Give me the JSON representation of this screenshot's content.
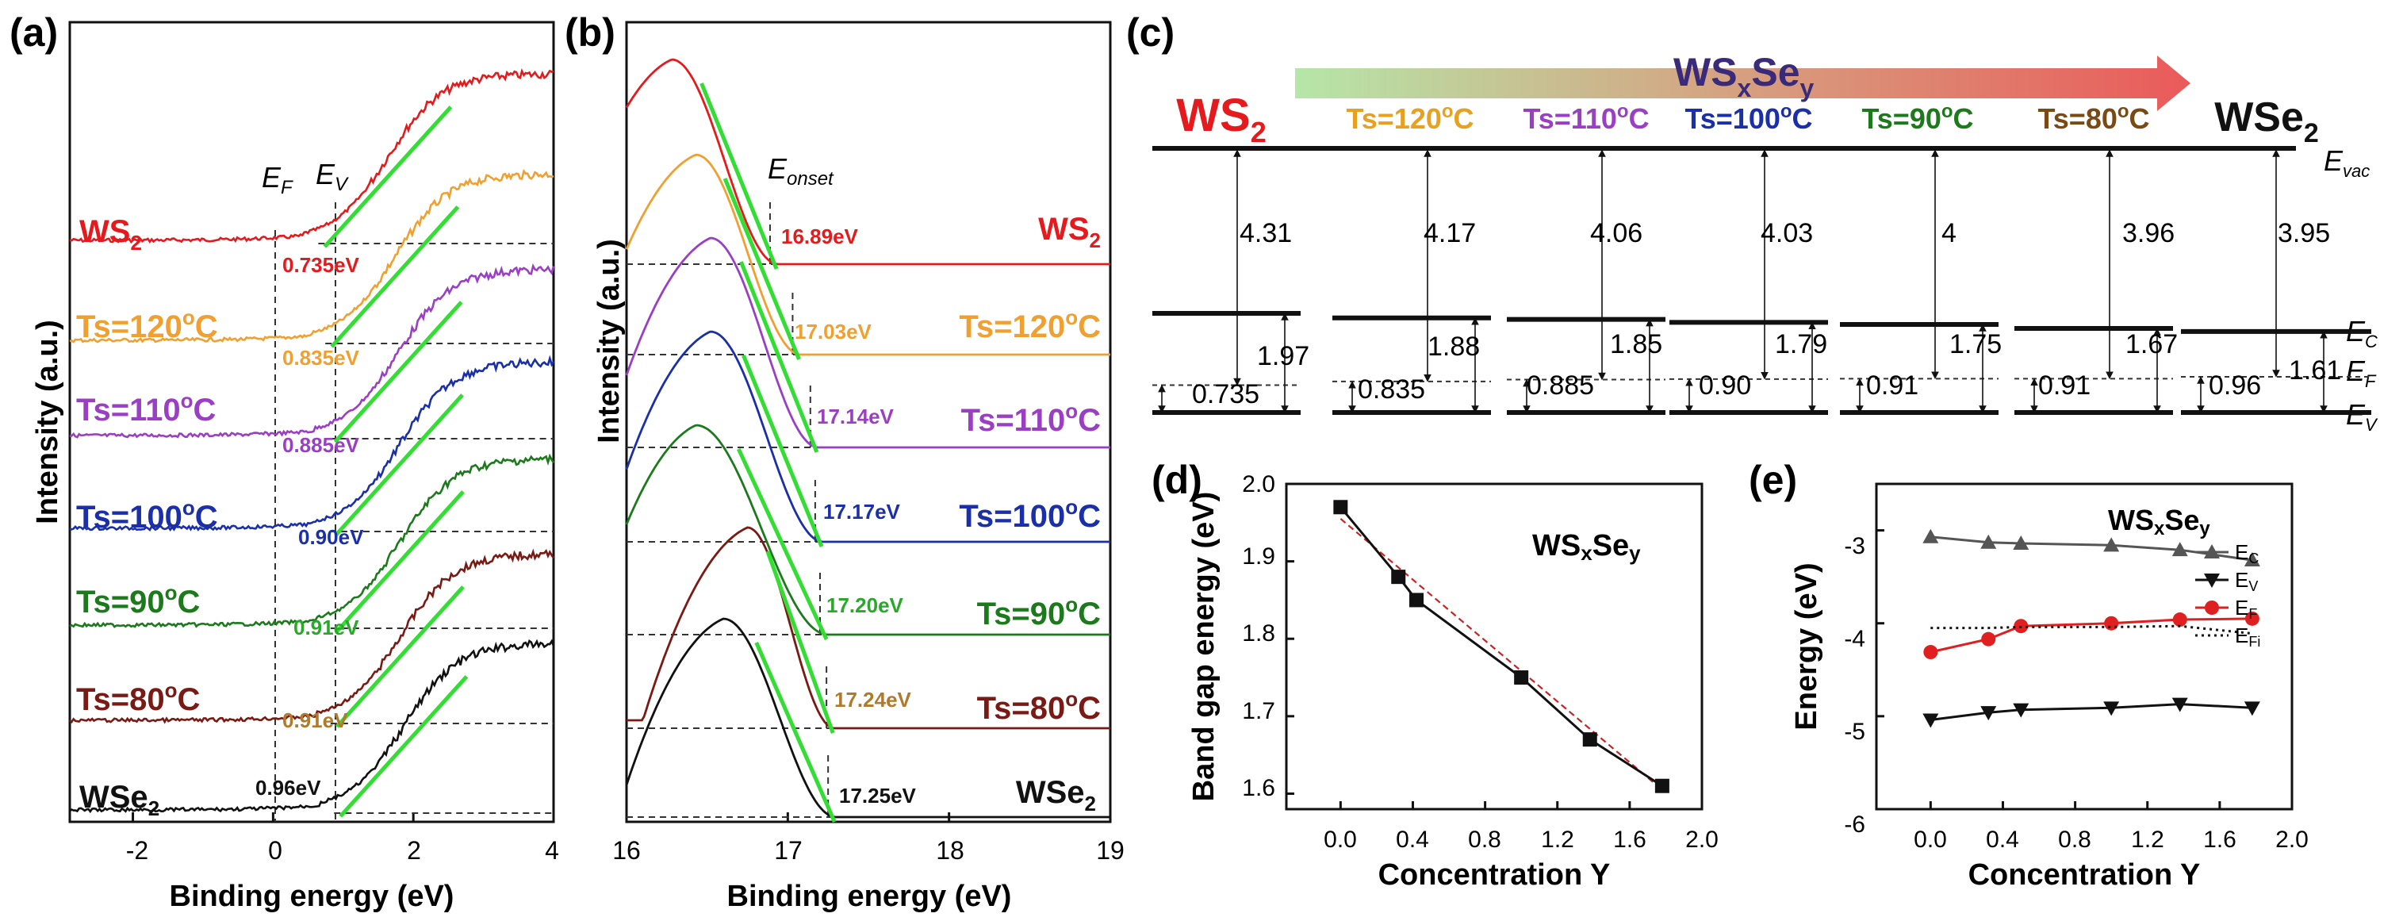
{
  "panels": {
    "a": "(a)",
    "b": "(b)",
    "c": "(c)",
    "d": "(d)",
    "e": "(e)"
  },
  "colors": {
    "WS2": "#e41a1c",
    "Ts120": "#f0a030",
    "Ts110": "#9a3fc4",
    "Ts100": "#1a2fa8",
    "Ts90": "#1c7a1c",
    "Ts80": "#7a1a14",
    "WSe2": "#111111",
    "fit": "#33dd33",
    "efit": "#cc2222",
    "ef_color": "#e02020",
    "ts120_text": "#e8a020"
  },
  "samples": [
    {
      "key": "WS2",
      "label": "WS",
      "sub": "2",
      "ev": "0.735eV",
      "eonset": "16.89eV",
      "color": "#e41a1c",
      "ev_val": 0.735,
      "eonset_val": 16.89
    },
    {
      "key": "Ts120",
      "label": "Ts=120",
      "sup": "o",
      "unit": "C",
      "ev": "0.835eV",
      "eonset": "17.03eV",
      "color": "#f0a030",
      "ev_val": 0.835,
      "eonset_val": 17.03
    },
    {
      "key": "Ts110",
      "label": "Ts=110",
      "sup": "o",
      "unit": "C",
      "ev": "0.885eV",
      "eonset": "17.14eV",
      "color": "#9a3fc4",
      "ev_val": 0.885,
      "eonset_val": 17.14
    },
    {
      "key": "Ts100",
      "label": "Ts=100",
      "sup": "o",
      "unit": "C",
      "ev": "0.90eV",
      "eonset": "17.17eV",
      "color": "#1a2fa8",
      "ev_val": 0.9,
      "eonset_val": 17.17
    },
    {
      "key": "Ts90",
      "label": "Ts=90",
      "sup": "o",
      "unit": "C",
      "ev": "0.91eV",
      "eonset": "17.20eV",
      "color": "#1c7a1c",
      "ev_val": 0.91,
      "eonset_val": 17.2
    },
    {
      "key": "Ts80",
      "label": "Ts=80",
      "sup": "o",
      "unit": "C",
      "ev": "0.91eV",
      "eonset": "17.24eV",
      "color": "#7a1a14",
      "ev_val": 0.91,
      "eonset_val": 17.24
    },
    {
      "key": "WSe2",
      "label": "WSe",
      "sub": "2",
      "ev": "0.96eV",
      "eonset": "17.25eV",
      "color": "#111111",
      "ev_val": 0.96,
      "eonset_val": 17.25
    }
  ],
  "panel_a": {
    "xlabel": "Binding energy (eV)",
    "ylabel": "Intensity (a.u.)",
    "xticks": [
      "-2",
      "0",
      "2",
      "4"
    ],
    "ef_label": "E",
    "ef_sub": "F",
    "ev_label": "E",
    "ev_sub": "V",
    "xlim": [
      -2.9,
      4
    ]
  },
  "panel_b": {
    "xlabel": "Binding energy (eV)",
    "ylabel": "Intensity (a.u.)",
    "xticks": [
      "16",
      "17",
      "18",
      "19"
    ],
    "eonset_label": "E",
    "eonset_sub": "onset",
    "xlim": [
      16,
      19
    ]
  },
  "panel_c": {
    "arrow_label": "WS",
    "arrow_sub1": "x",
    "arrow_mid": "Se",
    "arrow_sub2": "y",
    "evac": "E",
    "evac_sub": "vac",
    "ec": "E",
    "ec_sub": "C",
    "ef": "E",
    "ef_sub": "F",
    "ev": "E",
    "ev_sub": "V",
    "columns": [
      {
        "title": "WS",
        "title_sub": "2",
        "color": "#e41a1c",
        "wf": "4.31",
        "gap": "1.97",
        "ef": "0.735"
      },
      {
        "title": "Ts=120",
        "sup": "o",
        "unit": "C",
        "color": "#e8a020",
        "wf": "4.17",
        "gap": "1.88",
        "ef": "0.835"
      },
      {
        "title": "Ts=110",
        "sup": "o",
        "unit": "C",
        "color": "#9a3fc4",
        "wf": "4.06",
        "gap": "1.85",
        "ef": "0.885"
      },
      {
        "title": "Ts=100",
        "sup": "o",
        "unit": "C",
        "color": "#1a2fa8",
        "wf": "4.03",
        "gap": "1.79",
        "ef": "0.90"
      },
      {
        "title": "Ts=90",
        "sup": "o",
        "unit": "C",
        "color": "#1c7a1c",
        "wf": "4",
        "gap": "1.75",
        "ef": "0.91"
      },
      {
        "title": "Ts=80",
        "sup": "o",
        "unit": "C",
        "color": "#7a4a14",
        "wf": "3.96",
        "gap": "1.67",
        "ef": "0.91"
      },
      {
        "title": "WSe",
        "title_sub": "2",
        "color": "#111111",
        "wf": "3.95",
        "gap": "1.61",
        "ef": "0.96"
      }
    ]
  },
  "chart_data": [
    {
      "type": "line",
      "panel": "d",
      "title": "WSxSey",
      "title_parts": {
        "a": "WS",
        "b": "x",
        "c": "Se",
        "d": "y"
      },
      "xlabel": "Concentration Y",
      "ylabel": "Band gap energy (eV)",
      "x": [
        0,
        0.32,
        0.42,
        1.0,
        1.38,
        1.78
      ],
      "values": [
        1.97,
        1.88,
        1.85,
        1.75,
        1.67,
        1.61
      ],
      "fit": {
        "x": [
          0,
          1.78
        ],
        "y": [
          1.955,
          1.605
        ]
      },
      "xlim": [
        -0.3,
        2.0
      ],
      "ylim": [
        1.58,
        2.0
      ],
      "xticks": [
        "0.0",
        "0.4",
        "0.8",
        "1.2",
        "1.6",
        "2.0"
      ],
      "yticks": [
        "1.6",
        "1.7",
        "1.8",
        "1.9",
        "2.0"
      ]
    },
    {
      "type": "line",
      "panel": "e",
      "title": "WSxSey",
      "title_parts": {
        "a": "WS",
        "b": "x",
        "c": "Se",
        "d": "y"
      },
      "xlabel": "Concentration Y",
      "ylabel": "Energy (eV)",
      "x": [
        0,
        0.32,
        0.5,
        1.0,
        1.38,
        1.78
      ],
      "series": [
        {
          "name": "EC",
          "name_main": "E",
          "name_sub": "C",
          "values": [
            -3.07,
            -3.13,
            -3.14,
            -3.16,
            -3.21,
            -3.32
          ],
          "color": "#555555",
          "marker": "triangle-up"
        },
        {
          "name": "EV",
          "name_main": "E",
          "name_sub": "V",
          "values": [
            -5.04,
            -4.96,
            -4.93,
            -4.91,
            -4.87,
            -4.91
          ],
          "color": "#111111",
          "marker": "triangle-down"
        },
        {
          "name": "EF",
          "name_main": "E",
          "name_sub": "F",
          "values": [
            -4.31,
            -4.17,
            -4.03,
            -4.0,
            -3.96,
            -3.95
          ],
          "color": "#e02020",
          "marker": "circle"
        },
        {
          "name": "EFi",
          "name_main": "E",
          "name_sub": "Fi",
          "values": [
            -4.05,
            -4.05,
            -4.04,
            -4.04,
            -4.03,
            -4.11
          ],
          "color": "#111111",
          "marker": "dotted"
        }
      ],
      "xlim": [
        -0.3,
        2.0
      ],
      "ylim": [
        -6,
        -2.5
      ],
      "xticks": [
        "0.0",
        "0.4",
        "0.8",
        "1.2",
        "1.6",
        "2.0"
      ],
      "yticks": [
        "-3",
        "-4",
        "-5",
        "-6"
      ]
    }
  ]
}
